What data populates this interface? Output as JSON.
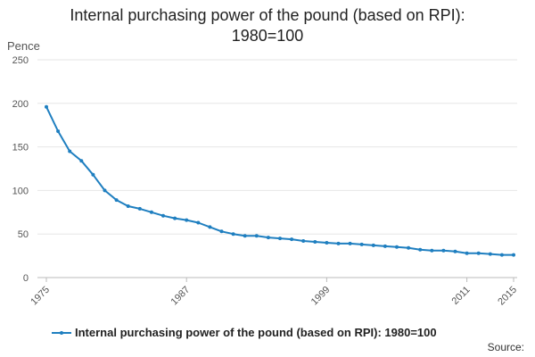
{
  "chart_data": {
    "type": "line",
    "title_lines": [
      "Internal purchasing power of the pound (based on RPI):",
      "1980=100"
    ],
    "ylabel": "Pence",
    "ylim": [
      0,
      250
    ],
    "yticks": [
      0,
      50,
      100,
      150,
      200,
      250
    ],
    "xlim": [
      1975,
      2015
    ],
    "xticks": [
      1975,
      1987,
      1999,
      2011,
      2015
    ],
    "grid": true,
    "legend_position": "bottom",
    "color": "#1f7fc0",
    "series": [
      {
        "name": "Internal purchasing power of the pound (based on RPI): 1980=100",
        "x": [
          1975,
          1976,
          1977,
          1978,
          1979,
          1980,
          1981,
          1982,
          1983,
          1984,
          1985,
          1986,
          1987,
          1988,
          1989,
          1990,
          1991,
          1992,
          1993,
          1994,
          1995,
          1996,
          1997,
          1998,
          1999,
          2000,
          2001,
          2002,
          2003,
          2004,
          2005,
          2006,
          2007,
          2008,
          2009,
          2010,
          2011,
          2012,
          2013,
          2014,
          2015
        ],
        "values": [
          196,
          168,
          145,
          134,
          118,
          100,
          89,
          82,
          79,
          75,
          71,
          68,
          66,
          63,
          58,
          53,
          50,
          48,
          48,
          46,
          45,
          44,
          42,
          41,
          40,
          39,
          39,
          38,
          37,
          36,
          35,
          34,
          32,
          31,
          31,
          30,
          28,
          28,
          27,
          26,
          26
        ]
      }
    ]
  },
  "source_label": "Source:"
}
